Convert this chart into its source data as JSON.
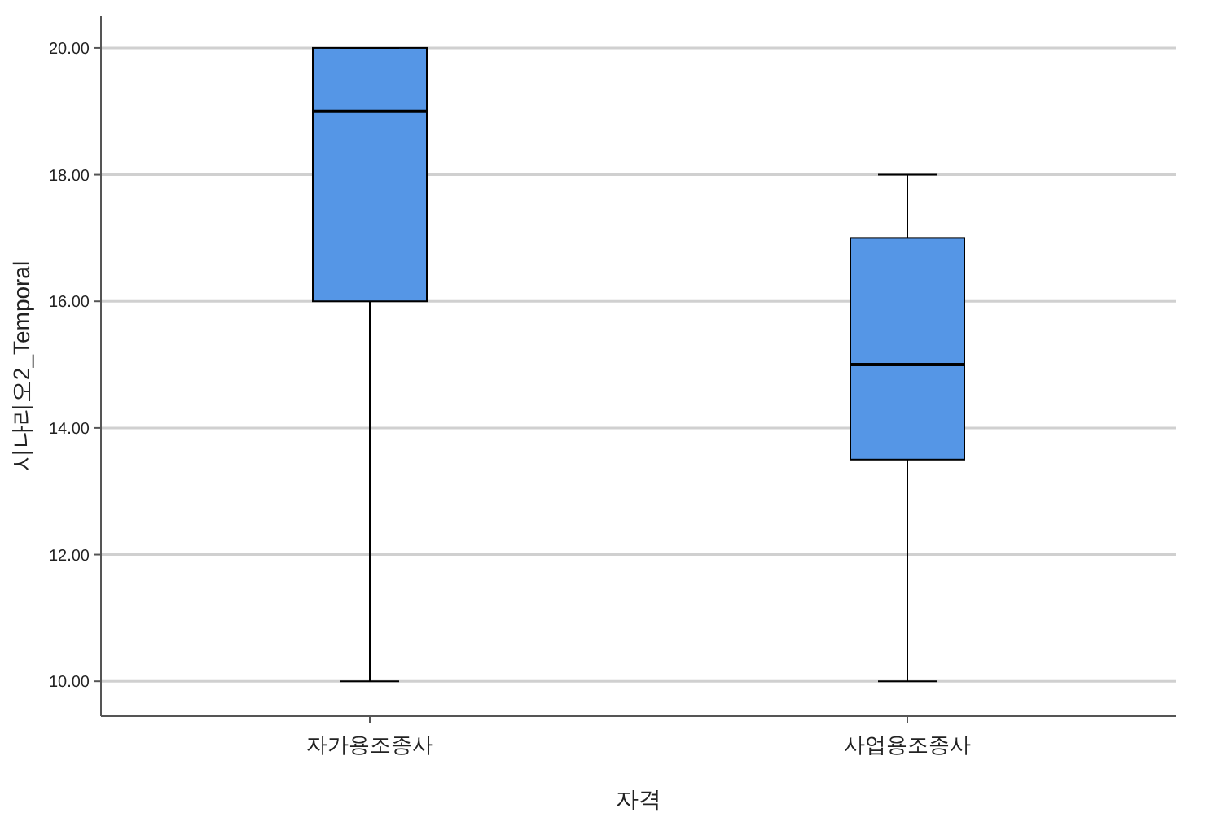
{
  "chart_data": {
    "type": "box",
    "xlabel": "자격",
    "ylabel": "시나리오2_Temporal",
    "categories": [
      "자가용조종사",
      "사업용조종사"
    ],
    "boxes": [
      {
        "low": 10,
        "q1": 16,
        "median": 19,
        "q3": 20,
        "high": 20
      },
      {
        "low": 10,
        "q1": 13.5,
        "median": 15,
        "q3": 17,
        "high": 18
      }
    ],
    "colors": [
      "#5596e6",
      "#5596e6"
    ],
    "ylim": [
      9.45,
      20.5
    ],
    "yticks": [
      {
        "value": 10,
        "label": "10.00"
      },
      {
        "value": 12,
        "label": "12.00"
      },
      {
        "value": 14,
        "label": "14.00"
      },
      {
        "value": 16,
        "label": "16.00"
      },
      {
        "value": 18,
        "label": "18.00"
      },
      {
        "value": 20,
        "label": "20.00"
      }
    ],
    "grid": "y"
  }
}
